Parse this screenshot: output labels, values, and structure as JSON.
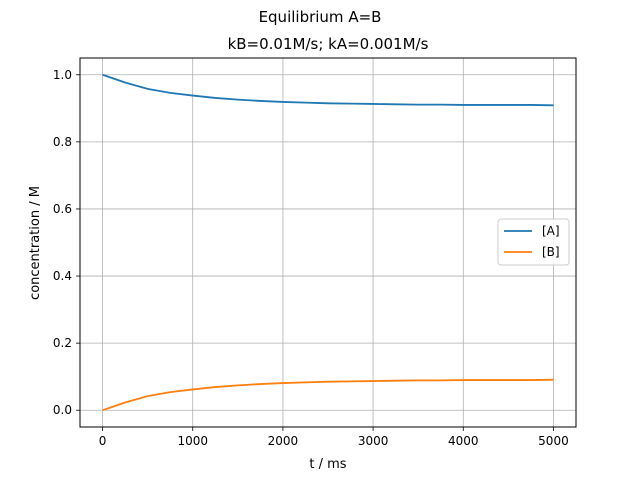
{
  "chart_data": {
    "type": "line",
    "suptitle": "Equilibrium A=B",
    "title": "kB=0.01M/s; kA=0.001M/s",
    "xlabel": "t / ms",
    "ylabel": "concentration / M",
    "xlim": [
      -250,
      5250
    ],
    "ylim": [
      -0.05,
      1.05
    ],
    "xticks": [
      0,
      1000,
      2000,
      3000,
      4000,
      5000
    ],
    "yticks": [
      0.0,
      0.2,
      0.4,
      0.6,
      0.8,
      1.0
    ],
    "xtick_labels": [
      "0",
      "1000",
      "2000",
      "3000",
      "4000",
      "5000"
    ],
    "ytick_labels": [
      "0.0",
      "0.2",
      "0.4",
      "0.6",
      "0.8",
      "1.0"
    ],
    "grid": true,
    "legend_position": "center-right",
    "x": [
      0,
      250,
      500,
      750,
      1000,
      1250,
      1500,
      1750,
      2000,
      2250,
      2500,
      2750,
      3000,
      3250,
      3500,
      3750,
      4000,
      4250,
      4500,
      4750,
      5000
    ],
    "series": [
      {
        "name": "[A]",
        "color": "#1f77b4",
        "values": [
          1.0,
          0.977,
          0.958,
          0.946,
          0.938,
          0.931,
          0.926,
          0.922,
          0.919,
          0.917,
          0.915,
          0.914,
          0.913,
          0.912,
          0.911,
          0.911,
          0.91,
          0.91,
          0.91,
          0.91,
          0.909
        ]
      },
      {
        "name": "[B]",
        "color": "#ff7f0e",
        "values": [
          0.0,
          0.023,
          0.042,
          0.054,
          0.062,
          0.069,
          0.074,
          0.078,
          0.081,
          0.083,
          0.085,
          0.086,
          0.087,
          0.088,
          0.089,
          0.089,
          0.09,
          0.09,
          0.09,
          0.09,
          0.091
        ]
      }
    ]
  }
}
